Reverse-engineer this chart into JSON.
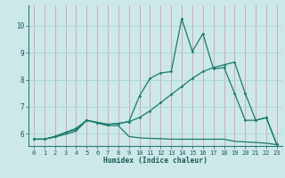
{
  "xlabel": "Humidex (Indice chaleur)",
  "bg_color": "#cce8e8",
  "line_color": "#1a7a6e",
  "grid_color_v": "#d4a0a8",
  "grid_color_h": "#aad4d4",
  "xlim": [
    -0.5,
    23.5
  ],
  "ylim": [
    5.55,
    10.75
  ],
  "xticks": [
    0,
    1,
    2,
    3,
    4,
    5,
    6,
    7,
    8,
    9,
    10,
    11,
    12,
    13,
    14,
    15,
    16,
    17,
    18,
    19,
    20,
    21,
    22,
    23
  ],
  "yticks": [
    6,
    7,
    8,
    9,
    10
  ],
  "line1_x": [
    0,
    1,
    2,
    3,
    4,
    5,
    6,
    7,
    8,
    9,
    10,
    11,
    12,
    13,
    14,
    15,
    16,
    17,
    18,
    19,
    20,
    21,
    22,
    23
  ],
  "line1_y": [
    5.8,
    5.8,
    5.88,
    5.98,
    6.1,
    6.5,
    6.4,
    6.3,
    6.3,
    5.9,
    5.85,
    5.83,
    5.82,
    5.8,
    5.8,
    5.8,
    5.8,
    5.8,
    5.8,
    5.72,
    5.7,
    5.68,
    5.65,
    5.6
  ],
  "line2_x": [
    0,
    1,
    2,
    3,
    4,
    5,
    6,
    7,
    8,
    9,
    10,
    11,
    12,
    13,
    14,
    15,
    16,
    17,
    18,
    19,
    20,
    21,
    22,
    23
  ],
  "line2_y": [
    5.8,
    5.8,
    5.9,
    6.05,
    6.15,
    6.5,
    6.42,
    6.35,
    6.38,
    6.45,
    6.6,
    6.85,
    7.15,
    7.45,
    7.75,
    8.05,
    8.3,
    8.45,
    8.55,
    8.65,
    7.5,
    6.5,
    6.6,
    5.6
  ],
  "line3_x": [
    0,
    1,
    2,
    3,
    4,
    5,
    6,
    7,
    8,
    9,
    10,
    11,
    12,
    13,
    14,
    15,
    16,
    17,
    18,
    19,
    20,
    21,
    22,
    23
  ],
  "line3_y": [
    5.8,
    5.8,
    5.9,
    6.05,
    6.2,
    6.5,
    6.42,
    6.35,
    6.38,
    6.45,
    7.4,
    8.05,
    8.25,
    8.3,
    10.25,
    9.05,
    9.7,
    8.4,
    8.45,
    7.5,
    6.5,
    6.5,
    6.6,
    5.6
  ]
}
